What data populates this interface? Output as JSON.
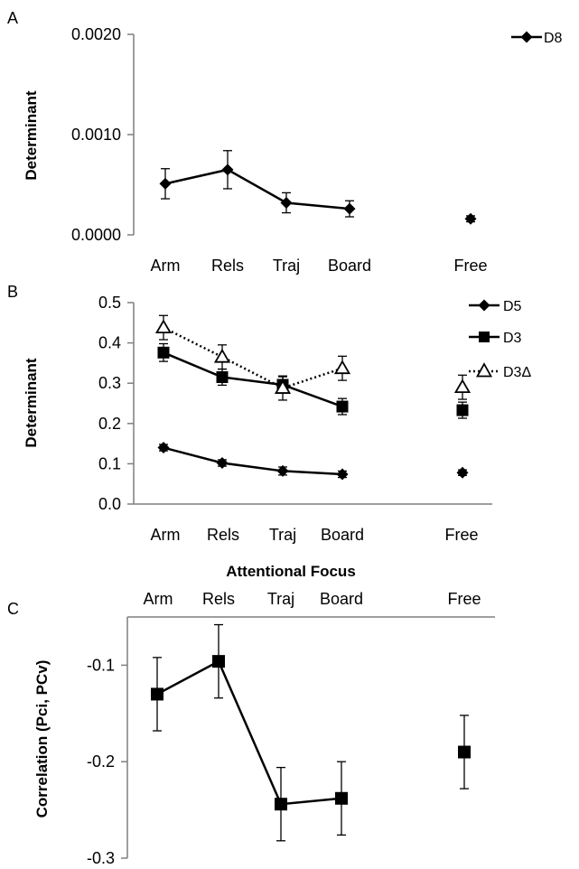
{
  "chart_data": [
    {
      "panel": "A",
      "type": "line",
      "ylabel": "Determinant",
      "xlabel": "",
      "ylim": [
        0,
        0.002
      ],
      "yticks": [
        "0.0000",
        "0.0010",
        "0.0020"
      ],
      "categories": [
        "Arm",
        "Rels",
        "Traj",
        "Board",
        "Free"
      ],
      "legend_position": "top-right",
      "series": [
        {
          "name": "D8",
          "marker": "diamond",
          "line": "solid",
          "values": [
            0.00051,
            0.00065,
            0.00032,
            0.00026,
            0.00016
          ],
          "errors": [
            0.00015,
            0.00019,
            0.0001,
            8e-05,
            3e-05
          ],
          "connected": [
            true,
            true,
            true,
            true,
            false
          ]
        }
      ]
    },
    {
      "panel": "B",
      "type": "line",
      "ylabel": "Determinant",
      "xlabel": "Attentional Focus",
      "ylim": [
        0,
        0.5
      ],
      "yticks": [
        "0.0",
        "0.1",
        "0.2",
        "0.3",
        "0.4",
        "0.5"
      ],
      "categories": [
        "Arm",
        "Rels",
        "Traj",
        "Board",
        "Free"
      ],
      "legend_position": "top-right",
      "series": [
        {
          "name": "D5",
          "marker": "diamond",
          "line": "solid",
          "values": [
            0.14,
            0.102,
            0.082,
            0.074,
            0.078
          ],
          "errors": [
            0.008,
            0.008,
            0.01,
            0.008,
            0.007
          ]
        },
        {
          "name": "D3",
          "marker": "square",
          "line": "solid",
          "values": [
            0.376,
            0.315,
            0.296,
            0.242,
            0.233
          ],
          "errors": [
            0.022,
            0.02,
            0.02,
            0.02,
            0.02
          ]
        },
        {
          "name": "D3Δ",
          "marker": "triangle",
          "line": "dotted",
          "values": [
            0.438,
            0.365,
            0.288,
            0.337,
            0.29
          ],
          "errors": [
            0.03,
            0.03,
            0.03,
            0.03,
            0.03
          ]
        }
      ]
    },
    {
      "panel": "C",
      "type": "line",
      "ylabel": "Correlation (Pci, PCv)",
      "xlabel": "",
      "ylim": [
        -0.3,
        -0.05
      ],
      "yticks": [
        "-0.1",
        "-0.2",
        "-0.3"
      ],
      "ytick_values": [
        -0.1,
        -0.2,
        -0.3
      ],
      "categories": [
        "Arm",
        "Rels",
        "Traj",
        "Board",
        "Free"
      ],
      "series": [
        {
          "marker": "square",
          "line": "solid",
          "values": [
            -0.13,
            -0.096,
            -0.244,
            -0.238,
            -0.19
          ],
          "errors": [
            0.038,
            0.038,
            0.038,
            0.038,
            0.038
          ]
        }
      ]
    }
  ]
}
